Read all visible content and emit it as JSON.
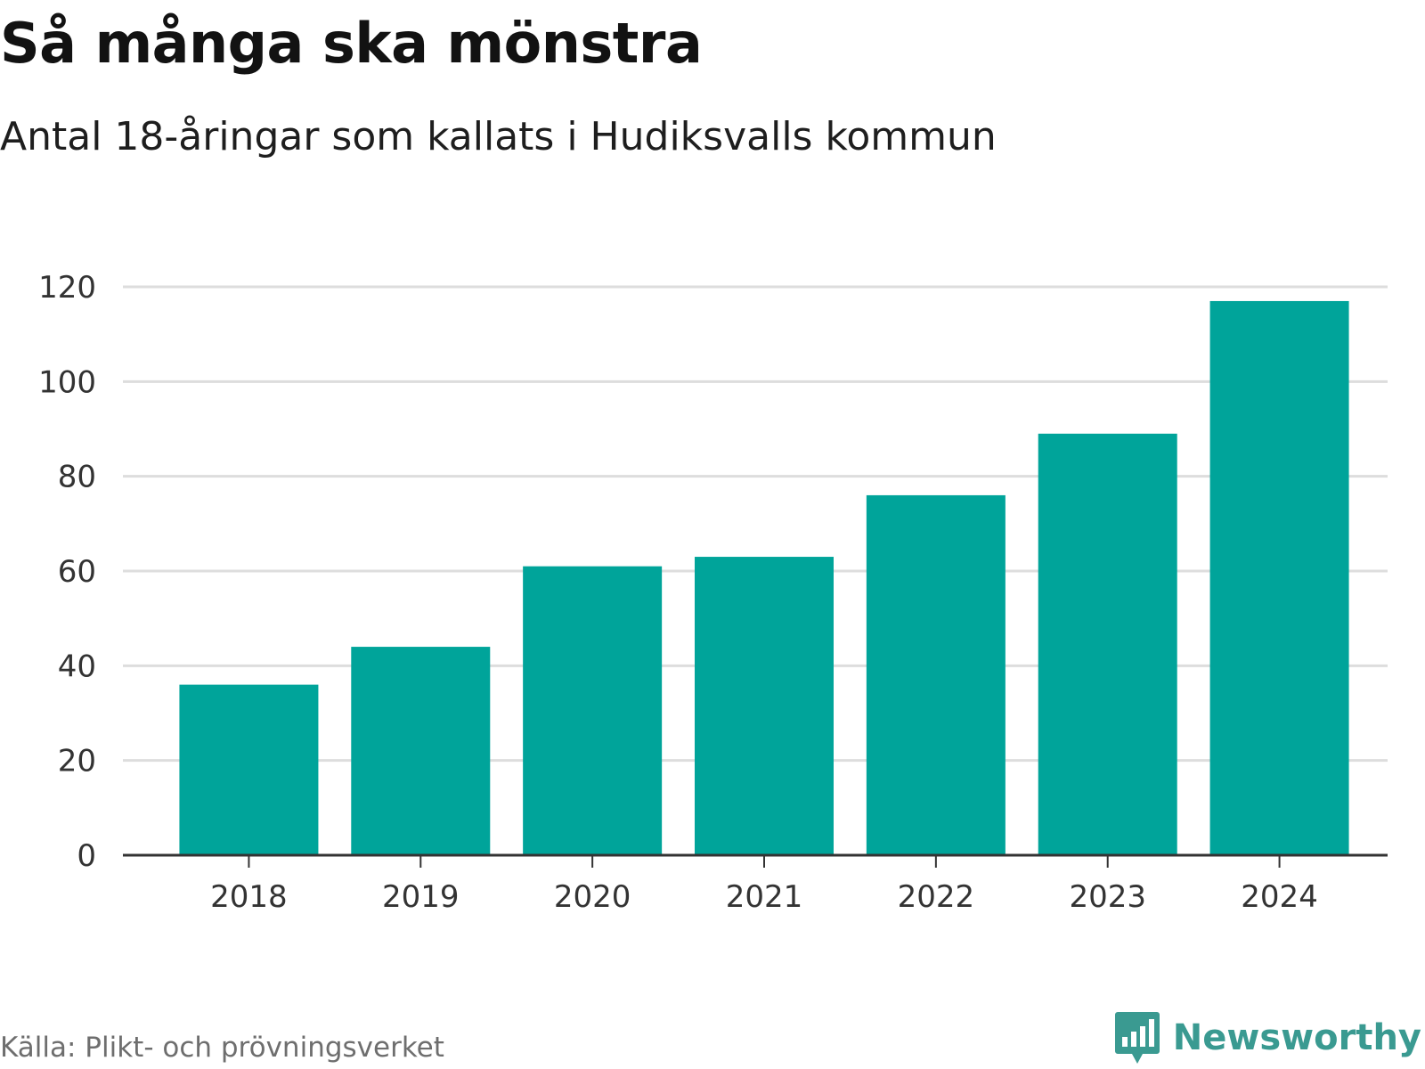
{
  "header": {
    "title": "Så många ska mönstra",
    "subtitle": "Antal 18-åringar som kallats i Hudiksvalls kommun"
  },
  "footer": {
    "source": "Källa: Plikt- och prövningsverket",
    "brand": "Newsworthy",
    "brand_icon": "bar-chart-bubble-icon"
  },
  "colors": {
    "bar": "#00a49a",
    "grid": "#dddddd",
    "axis": "#333333",
    "brand": "#3a9a91"
  },
  "chart_data": {
    "type": "bar",
    "title": "Så många ska mönstra",
    "subtitle": "Antal 18-åringar som kallats i Hudiksvalls kommun",
    "categories": [
      "2018",
      "2019",
      "2020",
      "2021",
      "2022",
      "2023",
      "2024"
    ],
    "values": [
      36,
      44,
      61,
      63,
      76,
      89,
      117
    ],
    "xlabel": "",
    "ylabel": "",
    "ylim": [
      0,
      120
    ],
    "yticks": [
      0,
      20,
      40,
      60,
      80,
      100,
      120
    ],
    "grid": true,
    "legend": "none"
  }
}
